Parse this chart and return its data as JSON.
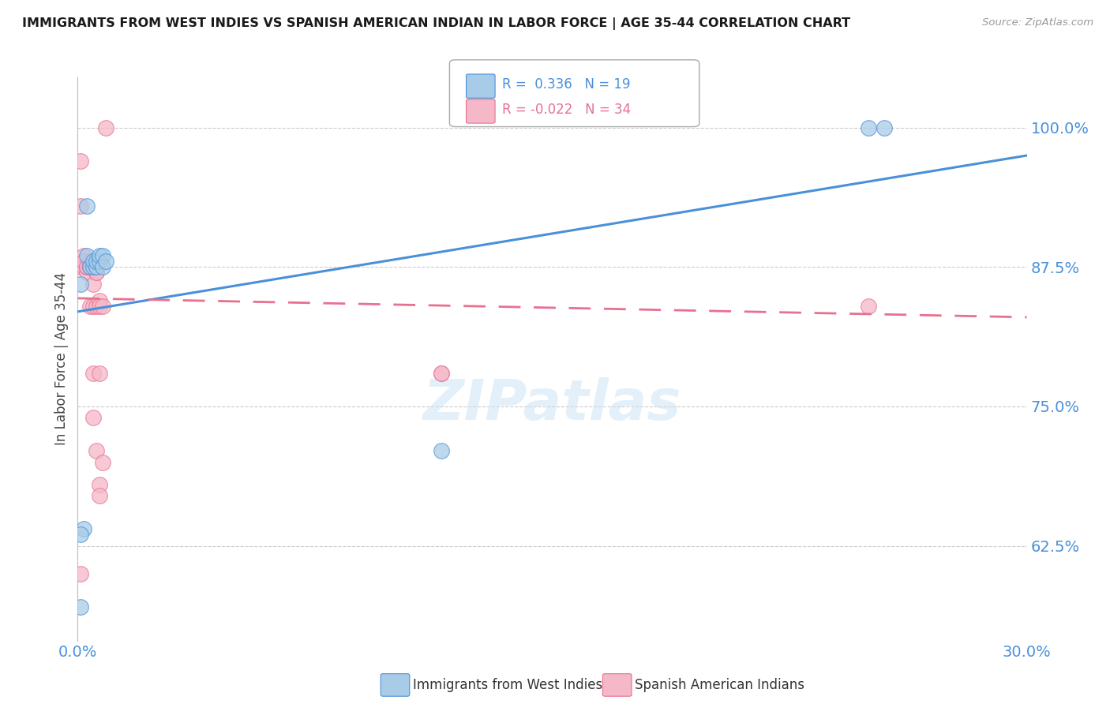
{
  "title": "IMMIGRANTS FROM WEST INDIES VS SPANISH AMERICAN INDIAN IN LABOR FORCE | AGE 35-44 CORRELATION CHART",
  "source": "Source: ZipAtlas.com",
  "ylabel": "In Labor Force | Age 35-44",
  "legend_label1": "Immigrants from West Indies",
  "legend_label2": "Spanish American Indians",
  "R1": 0.336,
  "N1": 19,
  "R2": -0.022,
  "N2": 34,
  "color_blue": "#a8cce8",
  "color_pink": "#f5b8c8",
  "color_blue_line": "#4a90d9",
  "color_pink_line": "#e87090",
  "color_axis_labels": "#4a90d9",
  "xlim": [
    0.0,
    0.3
  ],
  "ylim": [
    0.54,
    1.045
  ],
  "yticks": [
    0.625,
    0.75,
    0.875,
    1.0
  ],
  "ytick_labels": [
    "62.5%",
    "75.0%",
    "87.5%",
    "100.0%"
  ],
  "watermark": "ZIPatlas",
  "blue_x": [
    0.001,
    0.003,
    0.004,
    0.005,
    0.005,
    0.006,
    0.006,
    0.007,
    0.007,
    0.008,
    0.008,
    0.009,
    0.003,
    0.002,
    0.001,
    0.001,
    0.115,
    0.25,
    0.255
  ],
  "blue_y": [
    0.57,
    0.885,
    0.875,
    0.875,
    0.88,
    0.875,
    0.88,
    0.88,
    0.885,
    0.885,
    0.875,
    0.88,
    0.93,
    0.64,
    0.86,
    0.635,
    0.71,
    1.0,
    1.0
  ],
  "pink_x": [
    0.001,
    0.001,
    0.001,
    0.002,
    0.002,
    0.002,
    0.003,
    0.003,
    0.003,
    0.004,
    0.004,
    0.004,
    0.004,
    0.005,
    0.005,
    0.005,
    0.005,
    0.005,
    0.006,
    0.006,
    0.006,
    0.006,
    0.007,
    0.007,
    0.007,
    0.007,
    0.007,
    0.008,
    0.008,
    0.009,
    0.115,
    0.115,
    0.001,
    0.25
  ],
  "pink_y": [
    0.97,
    0.93,
    0.875,
    0.885,
    0.875,
    0.88,
    0.87,
    0.875,
    0.875,
    0.875,
    0.875,
    0.88,
    0.84,
    0.88,
    0.86,
    0.84,
    0.78,
    0.74,
    0.87,
    0.87,
    0.84,
    0.71,
    0.845,
    0.84,
    0.78,
    0.68,
    0.67,
    0.7,
    0.84,
    1.0,
    0.78,
    0.78,
    0.6,
    0.84
  ],
  "blue_trend": [
    0.0,
    0.3,
    0.835,
    0.975
  ],
  "pink_trend": [
    0.0,
    0.3,
    0.847,
    0.83
  ]
}
